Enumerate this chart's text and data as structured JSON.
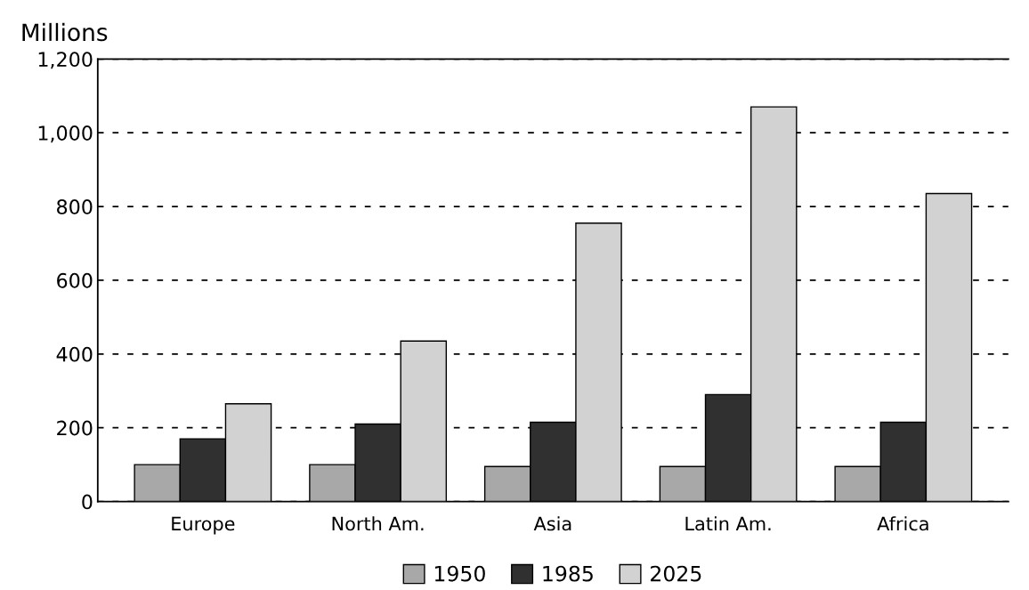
{
  "chart_data": {
    "type": "bar",
    "ylabel": "Millions",
    "categories": [
      "Europe",
      "North Am.",
      "Asia",
      "Latin Am.",
      "Africa"
    ],
    "series": [
      {
        "name": "1950",
        "color": "#a8a8a8",
        "values": [
          100,
          100,
          95,
          95,
          95
        ]
      },
      {
        "name": "1985",
        "color": "#303030",
        "values": [
          170,
          210,
          215,
          290,
          215
        ]
      },
      {
        "name": "2025",
        "color": "#d2d2d2",
        "values": [
          265,
          435,
          755,
          1070,
          835
        ]
      }
    ],
    "ylim": [
      0,
      1200
    ],
    "yticks": [
      0,
      200,
      400,
      600,
      800,
      {
        "value": 1000,
        "label": "1,000"
      },
      {
        "value": 1200,
        "label": "1,200"
      }
    ],
    "grid": "y",
    "line_style": "dashed",
    "legend": "bottom"
  }
}
